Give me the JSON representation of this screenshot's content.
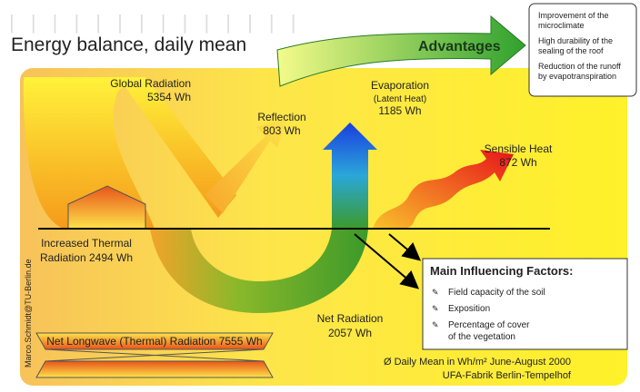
{
  "title": "Energy balance, daily mean",
  "advantages": {
    "label": "Advantages",
    "items": [
      [
        "Improvement of the",
        "microclimate"
      ],
      [
        "High durability of the",
        "sealing of the roof"
      ],
      [
        "Reduction of the runoff",
        "by evapotranspiration"
      ]
    ]
  },
  "flows": {
    "global_radiation": [
      "Global Radiation",
      "5354 Wh"
    ],
    "reflection": [
      "Reflection",
      "803 Wh"
    ],
    "evaporation": [
      "Evaporation",
      "(Latent Heat)",
      "1185 Wh"
    ],
    "sensible_heat": [
      "Sensible Heat",
      "872 Wh"
    ],
    "thermal_radiation": [
      "Increased Thermal",
      "Radiation 2494 Wh"
    ],
    "net_radiation": [
      "Net Radiation",
      "2057 Wh"
    ],
    "net_longwave": "Net Longwave (Thermal) Radiation 7555 Wh"
  },
  "factors": {
    "title": "Main Influencing Factors:",
    "items": [
      [
        "Field capacity of the soil"
      ],
      [
        "Exposition"
      ],
      [
        "Percentage of cover",
        "of the vegetation"
      ]
    ]
  },
  "credit": "Marco.Schmidt@TU-Berlin.de",
  "footer": [
    "Ø Daily Mean in Wh/m² June-August 2000",
    "UFA-Fabrik Berlin-Tempelhof"
  ]
}
